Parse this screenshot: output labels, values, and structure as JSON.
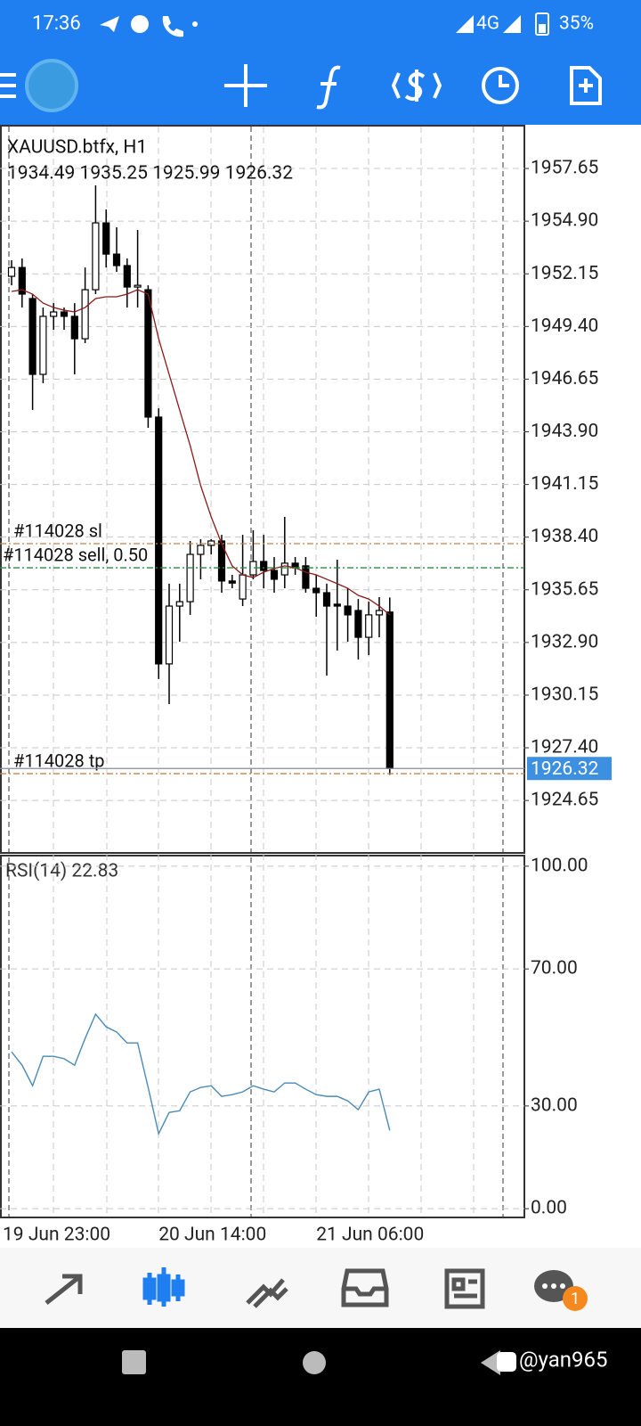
{
  "status_bar": {
    "time": "17:36",
    "network": "4G",
    "battery": "35%"
  },
  "chart_data": [
    {
      "type": "candlestick",
      "title": "XAUUSD.btfx, H1",
      "subtitle": "1934.49 1935.25 1925.99 1926.32",
      "categories": [
        "19 Jun 23:00",
        null,
        null,
        null,
        null,
        null,
        null,
        null,
        null,
        null,
        null,
        null,
        null,
        null,
        "20 Jun 14:00",
        null,
        null,
        null,
        null,
        null,
        null,
        null,
        null,
        null,
        null,
        null,
        null,
        null,
        null,
        "21 Jun 06:00",
        null,
        null,
        null,
        null,
        null,
        null,
        null
      ],
      "open": [
        1952.02,
        1952.48,
        1950.86,
        1946.9,
        1949.93,
        1950.16,
        1949.93,
        1948.76,
        1951.32,
        1954.81,
        1953.18,
        1952.58,
        1951.46,
        1951.32,
        1944.67,
        1931.78,
        1934.8,
        1935.03,
        1937.5,
        1937.97,
        1938.2,
        1936.11,
        1935.17,
        1936.43,
        1937.13,
        1936.66,
        1936.43,
        1937.04,
        1936.9,
        1935.73,
        1935.5,
        1934.9,
        1934.8,
        1934.57,
        1933.17,
        1934.34,
        1934.49
      ],
      "high": [
        1952.86,
        1952.95,
        1951.09,
        1950.39,
        1950.62,
        1950.39,
        1950.62,
        1952.48,
        1956.77,
        1955.51,
        1954.58,
        1952.95,
        1954.44,
        1951.55,
        1945.13,
        1935.97,
        1935.97,
        1938.2,
        1938.29,
        1938.29,
        1938.52,
        1936.43,
        1938.52,
        1938.76,
        1938.52,
        1937.36,
        1939.46,
        1937.36,
        1937.36,
        1936.43,
        1935.97,
        1937.22,
        1935.73,
        1935.17,
        1935.03,
        1935.27,
        1935.25
      ],
      "low": [
        1951.55,
        1950.39,
        1945.04,
        1946.44,
        1949.23,
        1949.23,
        1946.9,
        1948.53,
        1951.09,
        1952.48,
        1952.25,
        1950.39,
        1950.39,
        1944.11,
        1930.99,
        1929.68,
        1932.94,
        1934.34,
        1936.2,
        1937.5,
        1935.5,
        1935.73,
        1934.8,
        1936.2,
        1935.73,
        1935.5,
        1935.73,
        1936.43,
        1935.5,
        1934.24,
        1931.17,
        1932.48,
        1932.94,
        1932.01,
        1932.24,
        1933.17,
        1925.99
      ],
      "close": [
        1952.48,
        1951.09,
        1946.9,
        1949.93,
        1950.16,
        1949.93,
        1948.76,
        1951.32,
        1954.81,
        1953.18,
        1952.58,
        1951.46,
        1951.55,
        1944.67,
        1931.78,
        1934.8,
        1935.03,
        1937.5,
        1937.97,
        1938.2,
        1936.11,
        1936.0,
        1936.43,
        1937.13,
        1936.66,
        1936.2,
        1937.04,
        1936.8,
        1935.73,
        1935.5,
        1934.8,
        1934.8,
        1934.34,
        1933.17,
        1934.34,
        1934.57,
        1926.32
      ],
      "up_color": "#ffffff",
      "down_color": "#000000",
      "ma": {
        "color": "#8b1a1a",
        "values": [
          1951.23,
          1951.32,
          1951.09,
          1950.62,
          1950.39,
          1950.25,
          1950.16,
          1950.39,
          1950.86,
          1950.95,
          1950.95,
          1951.09,
          1951.32,
          1951.09,
          1948.76,
          1946.9,
          1945.04,
          1943.18,
          1941.09,
          1939.46,
          1938.06,
          1936.9,
          1936.43,
          1936.29,
          1936.57,
          1936.76,
          1936.9,
          1936.8,
          1936.57,
          1936.43,
          1936.2,
          1935.97,
          1935.73,
          1935.36,
          1935.17,
          1934.8,
          1934.34
        ]
      },
      "ylim": [
        1921.91,
        1959.84
      ],
      "yticks": [
        1957.65,
        {
          "value": 1954.9,
          "label": "1954.90"
        },
        1952.15,
        {
          "value": 1949.4,
          "label": "1949.40"
        },
        1946.65,
        {
          "value": 1943.9,
          "label": "1943.90"
        },
        1941.15,
        {
          "value": 1938.4,
          "label": "1938.40"
        },
        1935.65,
        {
          "value": 1932.9,
          "label": "1932.90"
        },
        1930.15,
        {
          "value": 1927.4,
          "label": "1927.40"
        },
        1924.65
      ],
      "grid": true,
      "levels": [
        {
          "label": "#114028 sl",
          "value": 1938.06,
          "color": "#c8844a"
        },
        {
          "label": "#114028 sell, 0.50",
          "value": 1936.8,
          "color": "#2e8b3a"
        },
        {
          "label": "#114028 tp",
          "value": 1926.05,
          "color": "#c8844a"
        }
      ],
      "last_price": 1926.32,
      "last_price_color": "#3d8fe0"
    },
    {
      "type": "line",
      "title": "RSI(14) 22.83",
      "series": [
        {
          "color": "#4a8ab5",
          "values": [
            45.8,
            41.9,
            35.9,
            44.5,
            44.5,
            43.8,
            41.9,
            49.7,
            56.8,
            53.1,
            51.6,
            48.4,
            48.4,
            35.4,
            21.9,
            28.1,
            28.6,
            34.1,
            35.4,
            35.9,
            32.8,
            33.3,
            34.1,
            35.9,
            34.9,
            34.1,
            36.7,
            36.7,
            34.9,
            33.3,
            32.8,
            32.8,
            31.5,
            28.9,
            34.1,
            34.9,
            22.83
          ]
        }
      ],
      "ylim": [
        -2.3,
        103.1
      ],
      "yticks": [
        {
          "value": 100,
          "label": "100.00"
        },
        {
          "value": 70,
          "label": "70.00"
        },
        {
          "value": 30,
          "label": "30.00"
        },
        {
          "value": 0,
          "label": "0.00"
        }
      ],
      "grid": true
    }
  ],
  "bottom_nav": {
    "badge": "1"
  },
  "watermark": "@yan965"
}
